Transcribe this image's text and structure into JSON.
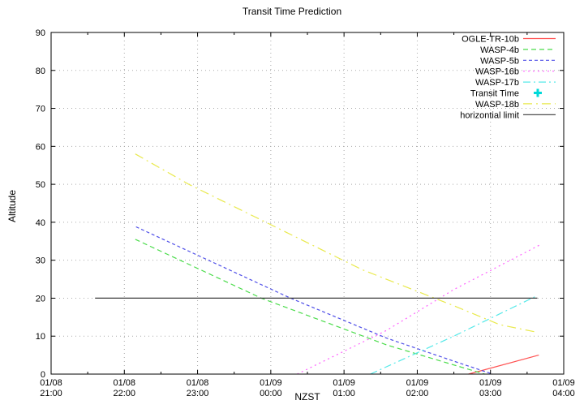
{
  "chart_data": {
    "type": "line",
    "title": "Transit Time Prediction",
    "xlabel": "NZST",
    "ylabel": "Altitude",
    "grid": true,
    "legend_position": "top-right-inside",
    "x_axis": {
      "unit": "hours after 01/08 21:00 NZST",
      "range": [
        0,
        7
      ],
      "minor_tick_interval": 0.5,
      "major_ticks": [
        {
          "t": 0,
          "date": "01/08",
          "time": "21:00"
        },
        {
          "t": 1,
          "date": "01/08",
          "time": "22:00"
        },
        {
          "t": 2,
          "date": "01/08",
          "time": "23:00"
        },
        {
          "t": 3,
          "date": "01/09",
          "time": "00:00"
        },
        {
          "t": 4,
          "date": "01/09",
          "time": "01:00"
        },
        {
          "t": 5,
          "date": "01/09",
          "time": "02:00"
        },
        {
          "t": 6,
          "date": "01/09",
          "time": "03:00"
        },
        {
          "t": 7,
          "date": "01/09",
          "time": "04:00"
        }
      ]
    },
    "y_axis": {
      "range": [
        0,
        90
      ],
      "tick_interval": 10,
      "ticks": [
        0,
        10,
        20,
        30,
        40,
        50,
        60,
        70,
        80,
        90
      ]
    },
    "grid_color": "#a9a9a9",
    "series": [
      {
        "name": "OGLE-TR-10b",
        "color": "#ff5252",
        "line_style": "solid",
        "dasharray": "",
        "points": [
          [
            5.7,
            0
          ],
          [
            6.66,
            5
          ]
        ]
      },
      {
        "name": "WASP-4b",
        "color": "#4bdc4b",
        "line_style": "dashed",
        "dasharray": "6,4",
        "points": [
          [
            1.15,
            35.5
          ],
          [
            2.87,
            20
          ],
          [
            4.58,
            7.7
          ],
          [
            5.92,
            0
          ]
        ]
      },
      {
        "name": "WASP-5b",
        "color": "#5050e8",
        "line_style": "dashed",
        "dasharray": "4,3",
        "points": [
          [
            1.16,
            38.8
          ],
          [
            3.27,
            20
          ],
          [
            4.58,
            9.5
          ],
          [
            5.5,
            3.4
          ],
          [
            6.03,
            0
          ]
        ]
      },
      {
        "name": "WASP-16b",
        "color": "#ff5fff",
        "line_style": "dotted",
        "dasharray": "2,4",
        "points": [
          [
            3.36,
            0
          ],
          [
            4.58,
            11.5
          ],
          [
            5.5,
            22.3
          ],
          [
            6.67,
            34
          ]
        ]
      },
      {
        "name": "WASP-17b",
        "color": "#55e9e9",
        "line_style": "dash-dot",
        "dasharray": "9,4,2,4",
        "points": [
          [
            4.36,
            0
          ],
          [
            5.5,
            10
          ],
          [
            6.64,
            20.7
          ]
        ]
      },
      {
        "name": "Transit Time",
        "color": "#00d9d9",
        "line_style": "marker",
        "marker": "plus",
        "points": []
      },
      {
        "name": "WASP-18b",
        "color": "#e9e94c",
        "line_style": "dash-dot",
        "dasharray": "11,5,2,5",
        "points": [
          [
            1.15,
            58
          ],
          [
            1.88,
            50
          ],
          [
            4.25,
            27.5
          ],
          [
            5.5,
            18
          ],
          [
            6.13,
            13
          ],
          [
            6.64,
            11
          ]
        ]
      },
      {
        "name": "horizontial limit",
        "color": "#3a3a3a",
        "line_style": "solid",
        "dasharray": "",
        "points": [
          [
            0.6,
            20
          ],
          [
            6.64,
            20
          ]
        ]
      }
    ]
  }
}
